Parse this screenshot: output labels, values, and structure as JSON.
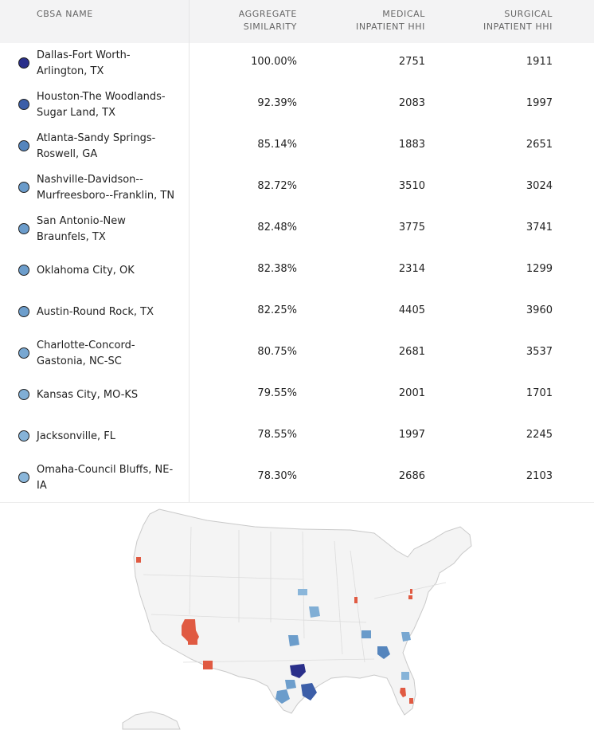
{
  "table": {
    "headers": {
      "name": "CBSA NAME",
      "agg_l1": "AGGREGATE",
      "agg_l2": "SIMILARITY",
      "med_l1": "MEDICAL",
      "med_l2": "INPATIENT HHI",
      "surg_l1": "SURGICAL",
      "surg_l2": "INPATIENT HHI"
    },
    "rows": [
      {
        "name_l1": "Dallas-Fort Worth-",
        "name_l2": "Arlington, TX",
        "agg": "100.00%",
        "med": "2751",
        "surg": "1911",
        "color": "#2a2f8a"
      },
      {
        "name_l1": "Houston-The Woodlands-",
        "name_l2": "Sugar Land, TX",
        "agg": "92.39%",
        "med": "2083",
        "surg": "1997",
        "color": "#3c5ea8"
      },
      {
        "name_l1": "Atlanta-Sandy Springs-",
        "name_l2": "Roswell, GA",
        "agg": "85.14%",
        "med": "1883",
        "surg": "2651",
        "color": "#5585bd"
      },
      {
        "name_l1": "Nashville-Davidson--",
        "name_l2": "Murfreesboro--Franklin, TN",
        "agg": "82.72%",
        "med": "3510",
        "surg": "3024",
        "color": "#6a9bca"
      },
      {
        "name_l1": "San Antonio-New",
        "name_l2": "Braunfels, TX",
        "agg": "82.48%",
        "med": "3775",
        "surg": "3741",
        "color": "#6b9ccb"
      },
      {
        "name_l1": "Oklahoma City, OK",
        "name_l2": "",
        "agg": "82.38%",
        "med": "2314",
        "surg": "1299",
        "color": "#6c9dcb"
      },
      {
        "name_l1": "Austin-Round Rock, TX",
        "name_l2": "",
        "agg": "82.25%",
        "med": "4405",
        "surg": "3960",
        "color": "#6d9ecc"
      },
      {
        "name_l1": "Charlotte-Concord-",
        "name_l2": "Gastonia, NC-SC",
        "agg": "80.75%",
        "med": "2681",
        "surg": "3537",
        "color": "#78a7d1"
      },
      {
        "name_l1": "Kansas City, MO-KS",
        "name_l2": "",
        "agg": "79.55%",
        "med": "2001",
        "surg": "1701",
        "color": "#80aed5"
      },
      {
        "name_l1": "Jacksonville, FL",
        "name_l2": "",
        "agg": "78.55%",
        "med": "1997",
        "surg": "2245",
        "color": "#86b3d8"
      },
      {
        "name_l1": "Omaha-Council Bluffs, NE-",
        "name_l2": "IA",
        "agg": "78.30%",
        "med": "2686",
        "surg": "2103",
        "color": "#8ab6da"
      }
    ]
  },
  "map": {
    "land_color": "#f4f4f4",
    "border_color": "#c9c9c9",
    "high_color": "#2a2f8a",
    "red_color": "#e05a42"
  }
}
